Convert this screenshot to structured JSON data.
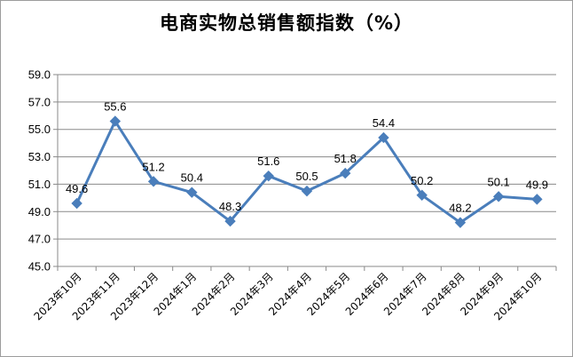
{
  "chart_data": {
    "type": "line",
    "title": "电商实物总销售额指数（%）",
    "categories": [
      "2023年10月",
      "2023年11月",
      "2023年12月",
      "2024年1月",
      "2024年2月",
      "2024年3月",
      "2024年4月",
      "2024年5月",
      "2024年6月",
      "2024年7月",
      "2024年8月",
      "2024年9月",
      "2024年10月"
    ],
    "series": [
      {
        "values": [
          49.6,
          55.6,
          51.2,
          50.4,
          48.3,
          51.6,
          50.5,
          51.8,
          54.4,
          50.2,
          48.2,
          50.1,
          49.9
        ]
      }
    ],
    "data_labels": [
      "49.6",
      "55.6",
      "51.2",
      "50.4",
      "48.3",
      "51.6",
      "50.5",
      "51.8",
      "54.4",
      "50.2",
      "48.2",
      "50.1",
      "49.9"
    ],
    "yticks": [
      "45.0",
      "47.0",
      "49.0",
      "51.0",
      "53.0",
      "55.0",
      "57.0",
      "59.0"
    ],
    "ylim": [
      45,
      59
    ],
    "grid": true,
    "legend": "none",
    "line_color": "#4a7ebb"
  }
}
